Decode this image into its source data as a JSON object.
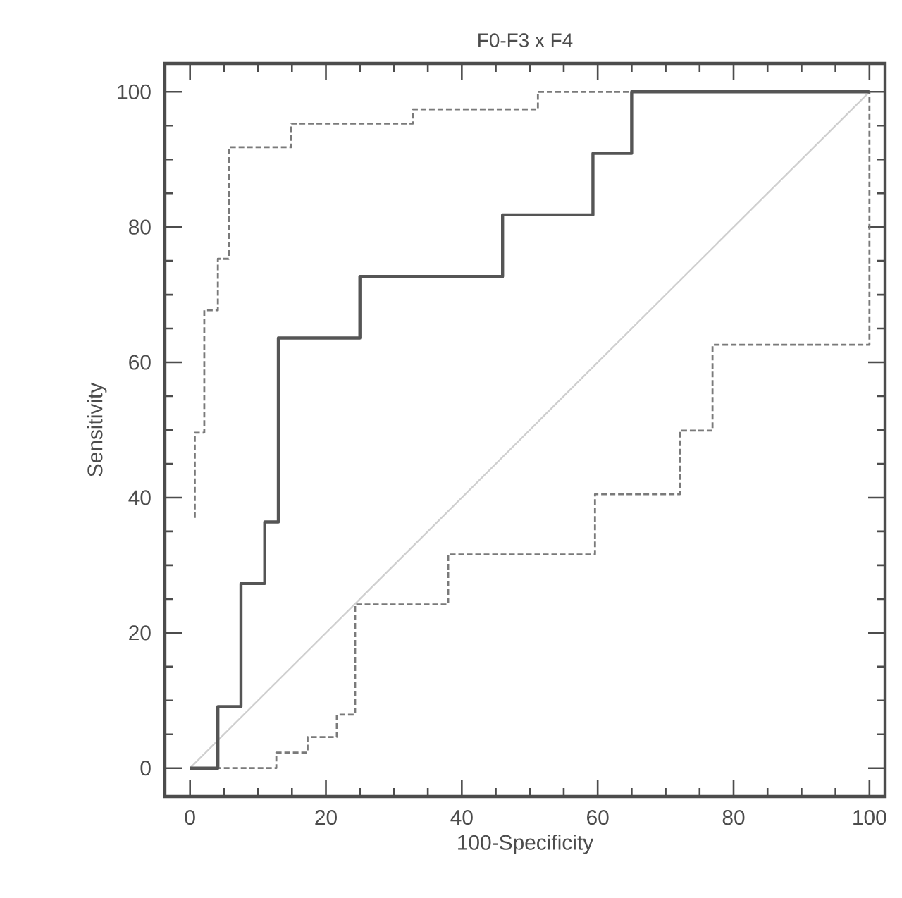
{
  "chart_data": {
    "type": "step",
    "title": "F0-F3 x F4",
    "xlabel": "100-Specificity",
    "ylabel": "Sensitivity",
    "xlim": [
      -3.7,
      102.3
    ],
    "ylim": [
      -4.2,
      104.2
    ],
    "xticks": [
      0,
      20,
      40,
      60,
      80,
      100
    ],
    "yticks": [
      0,
      20,
      40,
      60,
      80,
      100
    ],
    "grid": false,
    "series": [
      {
        "type": "line",
        "color": "#cfcfcf",
        "line_style": "solid",
        "x": [
          0,
          100
        ],
        "values": [
          0,
          100
        ]
      },
      {
        "color": "#7a7a7a",
        "line_style": "dashed",
        "x": [
          0.7,
          0.7,
          2.1,
          4.1,
          5.7,
          14.9,
          32.8,
          51.2,
          100
        ],
        "values": [
          37,
          49.6,
          67.7,
          75.3,
          91.8,
          95.3,
          97.4,
          100,
          100
        ]
      },
      {
        "color": "#7a7a7a",
        "line_style": "dashed",
        "x": [
          0,
          12.7,
          17.3,
          21.6,
          24.3,
          38,
          59.6,
          72.1,
          76.9,
          100
        ],
        "values": [
          0,
          2.3,
          4.6,
          7.9,
          24.2,
          31.6,
          40.5,
          49.9,
          62.6,
          100
        ]
      },
      {
        "color": "#555555",
        "line_style": "solid",
        "x": [
          0,
          4.1,
          7.5,
          11,
          13,
          25,
          46,
          59.3,
          65,
          100
        ],
        "values": [
          0,
          9.1,
          27.3,
          36.4,
          63.6,
          72.7,
          81.8,
          90.9,
          100,
          100
        ]
      }
    ]
  }
}
